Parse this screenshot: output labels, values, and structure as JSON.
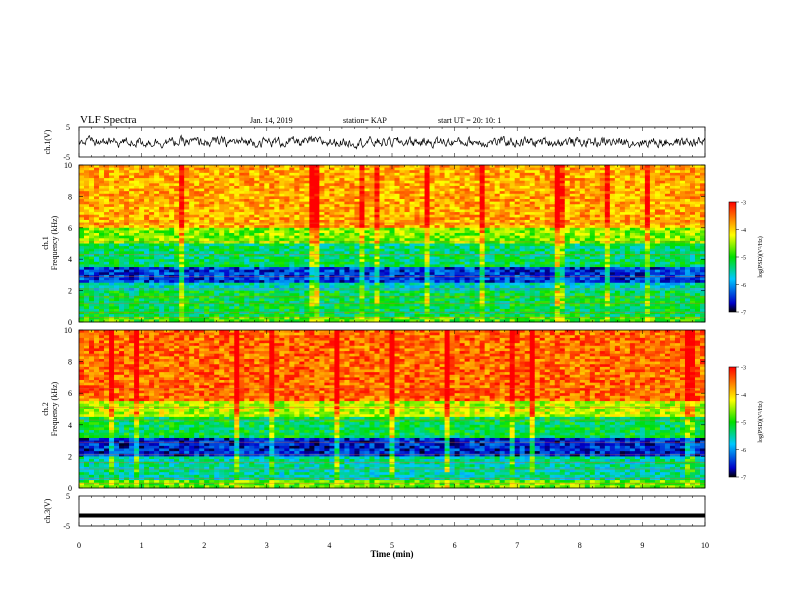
{
  "header": {
    "title": "VLF Spectra",
    "date": "Jan. 14, 2019",
    "station": "station= KAP",
    "start": "start  UT =   20: 10: 1"
  },
  "chart_data": [
    {
      "type": "line",
      "panel": "ch.1 waveform",
      "ylabel": "ch.1(V)",
      "ylim": [
        -5,
        5
      ],
      "yticks": [
        "5",
        "-5"
      ],
      "xlim": [
        0,
        10
      ],
      "description_note": "",
      "series": [
        {
          "values_summary": "noisy waveform centered near 0 V, amplitude roughly ±2 V"
        }
      ]
    },
    {
      "type": "heatmap",
      "panel": "ch.1 spectrogram",
      "ylabel": "ch.1 Frequency (kHz)",
      "ylim": [
        0,
        10
      ],
      "yticks": [
        "0",
        "2",
        "4",
        "6",
        "8",
        "10"
      ],
      "xlim": [
        0,
        10
      ],
      "colorbar": {
        "label": "log(PSD)(V²/Hz)",
        "range": [
          -7,
          -3
        ],
        "ticks": [
          "-3",
          "-4",
          "-5",
          "-6",
          "-7"
        ]
      },
      "bands_khz": [
        {
          "from": 0.0,
          "to": 0.3,
          "level": -4.8
        },
        {
          "from": 0.3,
          "to": 2.0,
          "level": -5.2
        },
        {
          "from": 2.0,
          "to": 2.5,
          "level": -5.6
        },
        {
          "from": 2.5,
          "to": 3.5,
          "level": -6.4
        },
        {
          "from": 3.5,
          "to": 5.0,
          "level": -5.3
        },
        {
          "from": 5.0,
          "to": 6.0,
          "level": -4.6
        },
        {
          "from": 6.0,
          "to": 10.0,
          "level": -3.8
        }
      ]
    },
    {
      "type": "heatmap",
      "panel": "ch.2 spectrogram",
      "ylabel": "ch.2 Frequency (kHz)",
      "ylim": [
        0,
        10
      ],
      "yticks": [
        "0",
        "2",
        "4",
        "6",
        "8",
        "10"
      ],
      "xlim": [
        0,
        10
      ],
      "colorbar": {
        "label": "log(PSD)(V²/Hz)",
        "range": [
          -7,
          -3
        ],
        "ticks": [
          "-3",
          "-4",
          "-5",
          "-6",
          "-7"
        ]
      },
      "bands_khz": [
        {
          "from": 0.0,
          "to": 0.5,
          "level": -4.7
        },
        {
          "from": 0.5,
          "to": 2.0,
          "level": -5.5
        },
        {
          "from": 2.0,
          "to": 3.2,
          "level": -6.5
        },
        {
          "from": 3.2,
          "to": 4.5,
          "level": -5.2
        },
        {
          "from": 4.5,
          "to": 5.5,
          "level": -4.4
        },
        {
          "from": 5.5,
          "to": 10.0,
          "level": -3.5
        }
      ]
    },
    {
      "type": "line",
      "panel": "ch.3 waveform",
      "ylabel": "ch.3(V)",
      "ylim": [
        -5,
        5
      ],
      "yticks": [
        "5",
        "-5"
      ],
      "xlim": [
        0,
        10
      ],
      "series": [
        {
          "values_summary": "flat line near -1.5 V"
        }
      ],
      "level": -1.5
    }
  ],
  "xaxis": {
    "label": "Time (min)",
    "ticks": [
      "0",
      "1",
      "2",
      "3",
      "4",
      "5",
      "6",
      "7",
      "8",
      "9",
      "10"
    ]
  },
  "colors": {
    "low": "#0000c8",
    "mid": "#00e000",
    "high": "#ff0000"
  }
}
